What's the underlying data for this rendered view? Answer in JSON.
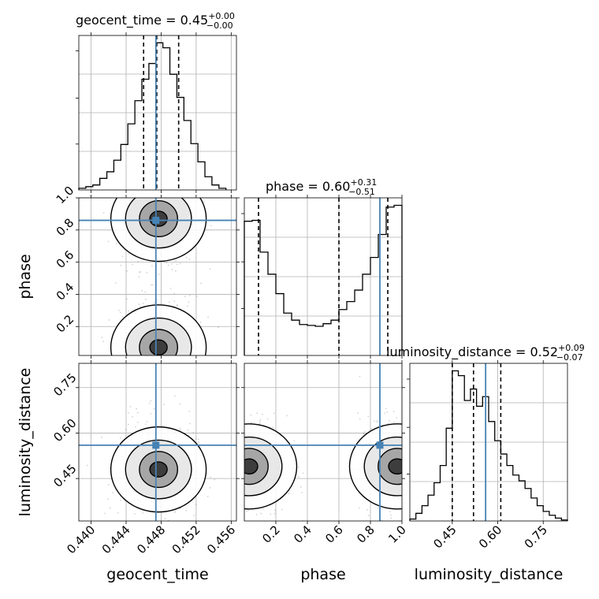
{
  "chart_data": [
    {
      "type": "histogram",
      "panel": "geocent_time",
      "title": {
        "prefix": "geocent_time = 0.45",
        "sup": "+0.00",
        "sub": "−0.00"
      },
      "x": [
        0.439,
        0.4398,
        0.4406,
        0.4414,
        0.4422,
        0.443,
        0.4438,
        0.4446,
        0.4454,
        0.4462,
        0.447,
        0.4478,
        0.4486,
        0.4494,
        0.4502,
        0.451,
        0.4518,
        0.4526,
        0.4534,
        0.4542,
        0.455
      ],
      "values": [
        2,
        4,
        6,
        14,
        22,
        36,
        55,
        80,
        108,
        134,
        153,
        178,
        172,
        140,
        112,
        84,
        56,
        34,
        16,
        6,
        2
      ],
      "xlim": [
        0.4386,
        0.4566
      ],
      "quantiles": [
        0.446,
        0.4475,
        0.45
      ],
      "truth": 0.4474
    },
    {
      "type": "histogram",
      "panel": "phase",
      "title": {
        "prefix": "phase = 0.60",
        "sup": "+0.31",
        "sub": "−0.51"
      },
      "x": [
        0.025,
        0.075,
        0.125,
        0.175,
        0.225,
        0.275,
        0.325,
        0.375,
        0.425,
        0.475,
        0.525,
        0.575,
        0.625,
        0.675,
        0.725,
        0.775,
        0.825,
        0.875,
        0.925,
        0.975
      ],
      "values": [
        152,
        153,
        117,
        92,
        70,
        48,
        40,
        35,
        34,
        33,
        36,
        40,
        52,
        61,
        74,
        92,
        111,
        137,
        168,
        170
      ],
      "xlim": [
        0.0,
        1.0
      ],
      "quantiles": [
        0.09,
        0.6,
        0.91
      ],
      "truth": 0.86
    },
    {
      "type": "histogram",
      "panel": "luminosity_distance",
      "title": {
        "prefix": "luminosity_distance = 0.52",
        "sup": "+0.09",
        "sub": "−0.07"
      },
      "x": [
        0.32,
        0.34,
        0.36,
        0.38,
        0.4,
        0.42,
        0.44,
        0.46,
        0.48,
        0.5,
        0.52,
        0.54,
        0.56,
        0.58,
        0.6,
        0.62,
        0.64,
        0.66,
        0.68,
        0.7,
        0.72,
        0.74,
        0.76,
        0.78,
        0.8,
        0.82
      ],
      "values": [
        2,
        8,
        16,
        27,
        40,
        58,
        97,
        157,
        152,
        126,
        138,
        120,
        130,
        104,
        84,
        70,
        58,
        48,
        42,
        34,
        24,
        16,
        10,
        6,
        3,
        1
      ],
      "xlim": [
        0.31,
        0.83
      ],
      "quantiles": [
        0.45,
        0.52,
        0.61
      ],
      "truth": 0.56
    },
    {
      "type": "scatter-density",
      "panel": "geocent_time vs phase",
      "x_param": "geocent_time",
      "y_param": "phase",
      "modes": [
        {
          "x": 0.4477,
          "y": 0.87
        },
        {
          "x": 0.4477,
          "y": 0.07
        }
      ],
      "xlim": [
        0.4386,
        0.4566
      ],
      "ylim": [
        0.02,
        1.0
      ],
      "truth": {
        "x": 0.4474,
        "y": 0.86
      }
    },
    {
      "type": "scatter-density",
      "panel": "geocent_time vs luminosity_distance",
      "x_param": "geocent_time",
      "y_param": "luminosity_distance",
      "modes": [
        {
          "x": 0.4477,
          "y": 0.48
        }
      ],
      "xlim": [
        0.4386,
        0.4566
      ],
      "ylim": [
        0.31,
        0.83
      ],
      "truth": {
        "x": 0.4474,
        "y": 0.56
      }
    },
    {
      "type": "scatter-density",
      "panel": "phase vs luminosity_distance",
      "x_param": "phase",
      "y_param": "luminosity_distance",
      "modes": [
        {
          "x": 0.03,
          "y": 0.49
        },
        {
          "x": 0.97,
          "y": 0.49
        }
      ],
      "xlim": [
        0.0,
        1.0
      ],
      "ylim": [
        0.31,
        0.83
      ],
      "truth": {
        "x": 0.86,
        "y": 0.56
      }
    }
  ],
  "axes": {
    "geocent_time": {
      "label": "geocent_time",
      "ticks": [
        0.44,
        0.444,
        0.448,
        0.452,
        0.456
      ],
      "tick_labels": [
        "0.440",
        "0.444",
        "0.448",
        "0.452",
        "0.456"
      ]
    },
    "phase": {
      "label": "phase",
      "ticks": [
        0.2,
        0.4,
        0.6,
        0.8,
        1.0
      ],
      "tick_labels": [
        "0.2",
        "0.4",
        "0.6",
        "0.8",
        "1.0"
      ]
    },
    "luminosity_distance": {
      "label": "luminosity_distance",
      "ticks": [
        0.45,
        0.6,
        0.75
      ],
      "tick_labels": [
        "0.45",
        "0.60",
        "0.75"
      ]
    }
  },
  "colors": {
    "truth": "#4682b4",
    "hist": "#000000",
    "grid": "#b0b0b0",
    "scatter": "#808080"
  },
  "grid": true
}
